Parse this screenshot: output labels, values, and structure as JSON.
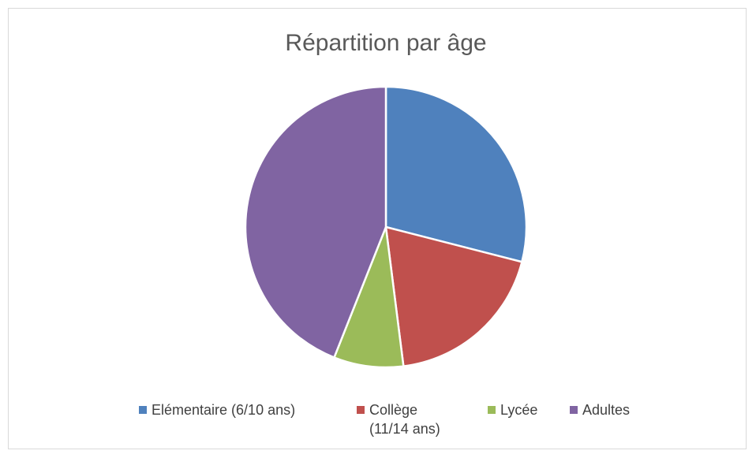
{
  "chart_data": {
    "type": "pie",
    "title": "Répartition par âge",
    "categories": [
      "Elémentaire (6/10 ans)",
      "Collège (11/14 ans)",
      "Lycée",
      "Adultes"
    ],
    "values": [
      29,
      19,
      8,
      44
    ],
    "colors": [
      "#4f81bd",
      "#c0504d",
      "#9bbb59",
      "#8064a2"
    ],
    "legend": "bottom"
  }
}
